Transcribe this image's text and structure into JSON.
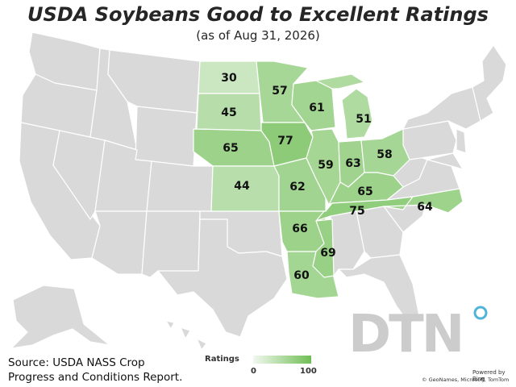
{
  "title": "USDA Soybeans Good to Excellent Ratings",
  "subtitle": "(as of Aug 31, 2026)",
  "source_line1": "Source: USDA NASS Crop",
  "source_line2": "Progress and Conditions Report.",
  "legend": {
    "title": "Ratings",
    "min": "0",
    "max": "100",
    "color_low": "#f2f8ef",
    "color_high": "#6fbe55"
  },
  "brand": "DTN",
  "powered_by": "Powered by Bing",
  "attribution": "© GeoNames, Microsoft, TomTom",
  "colors": {
    "no_data": "#d9d9d9",
    "scale_low": "#f2f8ef",
    "scale_high": "#6fbe55"
  },
  "states": [
    {
      "code": "ND",
      "name": "North Dakota",
      "rating": 30
    },
    {
      "code": "SD",
      "name": "South Dakota",
      "rating": 45
    },
    {
      "code": "NE",
      "name": "Nebraska",
      "rating": 65
    },
    {
      "code": "KS",
      "name": "Kansas",
      "rating": 44
    },
    {
      "code": "MN",
      "name": "Minnesota",
      "rating": 57
    },
    {
      "code": "IA",
      "name": "Iowa",
      "rating": 77
    },
    {
      "code": "MO",
      "name": "Missouri",
      "rating": 62
    },
    {
      "code": "AR",
      "name": "Arkansas",
      "rating": 66
    },
    {
      "code": "LA",
      "name": "Louisiana",
      "rating": 60
    },
    {
      "code": "WI",
      "name": "Wisconsin",
      "rating": 61
    },
    {
      "code": "IL",
      "name": "Illinois",
      "rating": 59
    },
    {
      "code": "MS",
      "name": "Mississippi",
      "rating": 69
    },
    {
      "code": "MI",
      "name": "Michigan",
      "rating": 51
    },
    {
      "code": "IN",
      "name": "Indiana",
      "rating": 63
    },
    {
      "code": "OH",
      "name": "Ohio",
      "rating": 58
    },
    {
      "code": "KY",
      "name": "Kentucky",
      "rating": 65
    },
    {
      "code": "TN",
      "name": "Tennessee",
      "rating": 75
    },
    {
      "code": "NC",
      "name": "North Carolina",
      "rating": 64
    }
  ]
}
